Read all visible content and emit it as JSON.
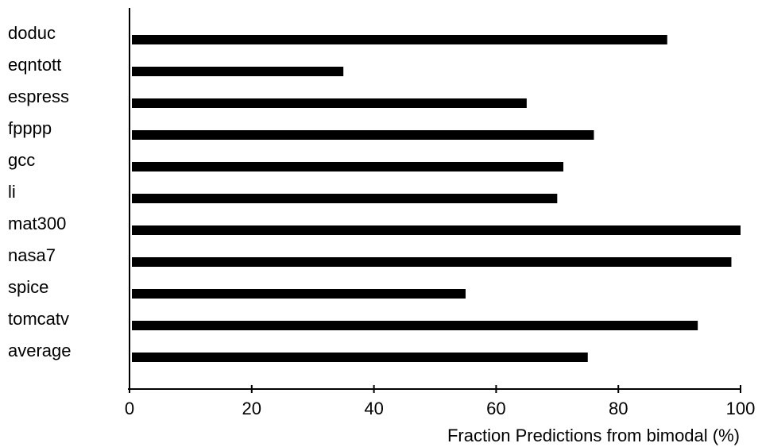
{
  "chart_data": {
    "type": "bar",
    "orientation": "horizontal",
    "categories": [
      "doduc",
      "eqntott",
      "espress",
      "fpppp",
      "gcc",
      "li",
      "mat300",
      "nasa7",
      "spice",
      "tomcatv",
      "average"
    ],
    "values": [
      88,
      35,
      65,
      76,
      71,
      70,
      100,
      98.5,
      55,
      93,
      75
    ],
    "title": "",
    "xlabel": "Fraction Predictions from bimodal (%)",
    "ylabel": "",
    "xlim": [
      0,
      100
    ],
    "xticks": [
      "0",
      "20",
      "40",
      "60",
      "80",
      "100"
    ],
    "bar_color": "#000000",
    "grid": false
  }
}
